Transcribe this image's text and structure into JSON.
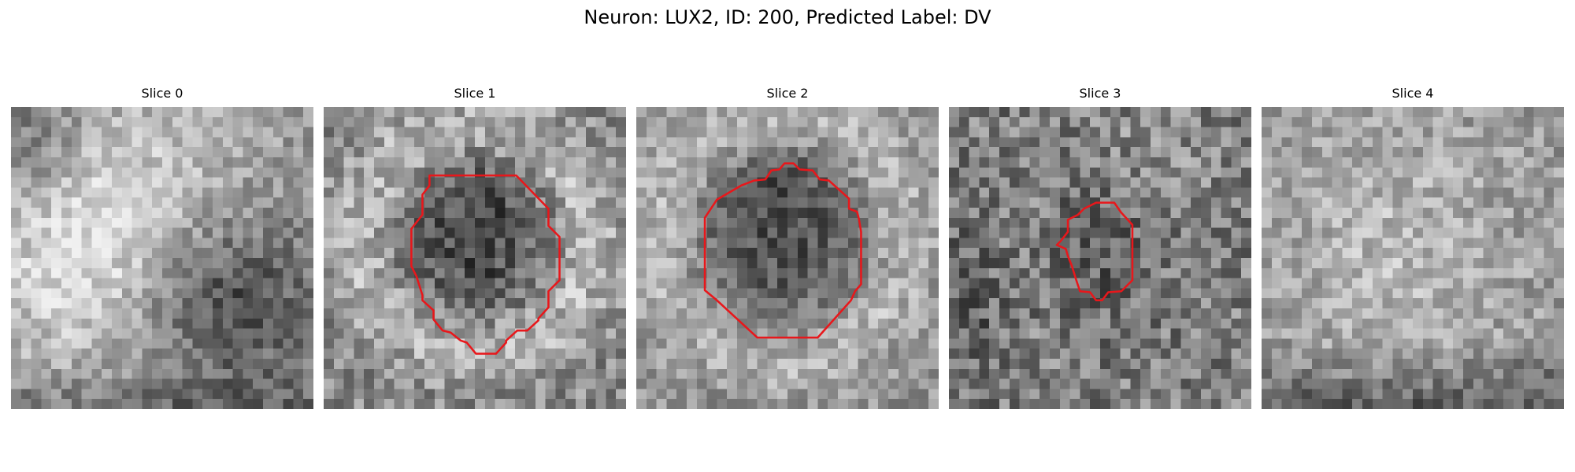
{
  "figure": {
    "title": "Neuron: LUX2, ID: 200, Predicted Label: DV",
    "contour_color": "#e8171b",
    "panels": [
      {
        "title": "Slice 0"
      },
      {
        "title": "Slice 1"
      },
      {
        "title": "Slice 2"
      },
      {
        "title": "Slice 3"
      },
      {
        "title": "Slice 4"
      }
    ]
  }
}
